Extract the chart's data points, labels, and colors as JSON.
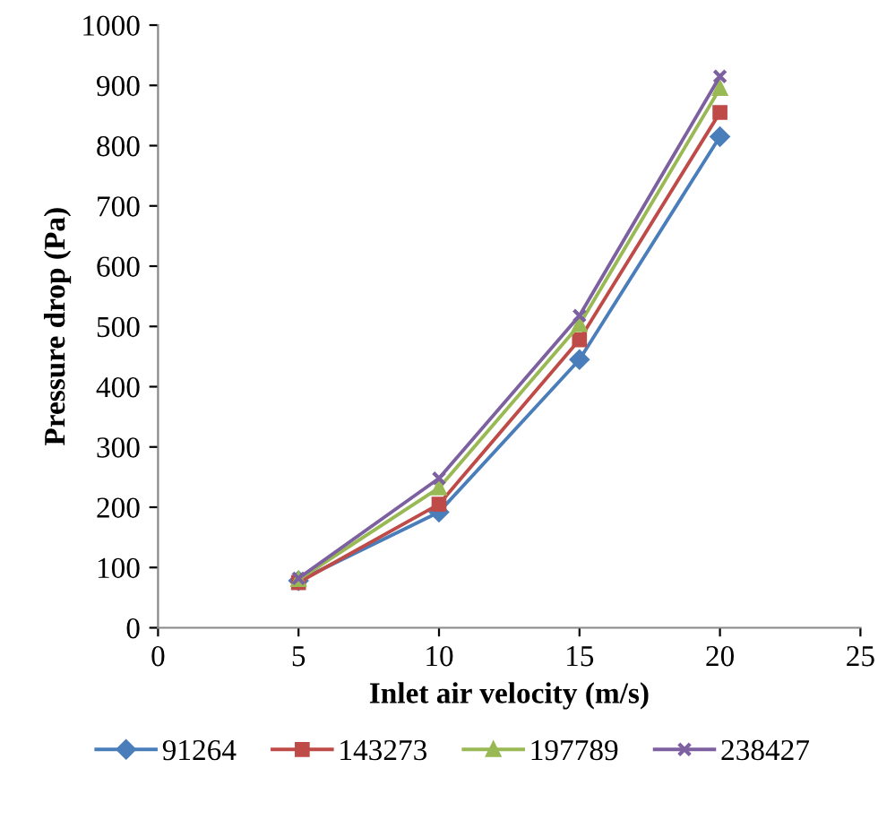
{
  "chart_data": {
    "type": "line",
    "xlabel": "Inlet air velocity (m/s)",
    "ylabel": "Pressure drop (Pa)",
    "x": [
      5,
      10,
      15,
      20
    ],
    "series": [
      {
        "name": "91264",
        "color": "#4a7ebb",
        "marker": "diamond",
        "values": [
          78,
          192,
          445,
          815
        ]
      },
      {
        "name": "143273",
        "color": "#be4b48",
        "marker": "square",
        "values": [
          75,
          205,
          478,
          855
        ]
      },
      {
        "name": "197789",
        "color": "#98b954",
        "marker": "triangle",
        "values": [
          80,
          232,
          503,
          895
        ]
      },
      {
        "name": "238427",
        "color": "#7d60a0",
        "marker": "cross",
        "values": [
          82,
          248,
          518,
          915
        ]
      }
    ],
    "xlim": [
      0,
      25
    ],
    "xticks": [
      0,
      5,
      10,
      15,
      20,
      25
    ],
    "ylim": [
      0,
      1000
    ],
    "yticks": [
      0,
      100,
      200,
      300,
      400,
      500,
      600,
      700,
      800,
      900,
      1000
    ],
    "legend": "bottom",
    "grid": false
  }
}
